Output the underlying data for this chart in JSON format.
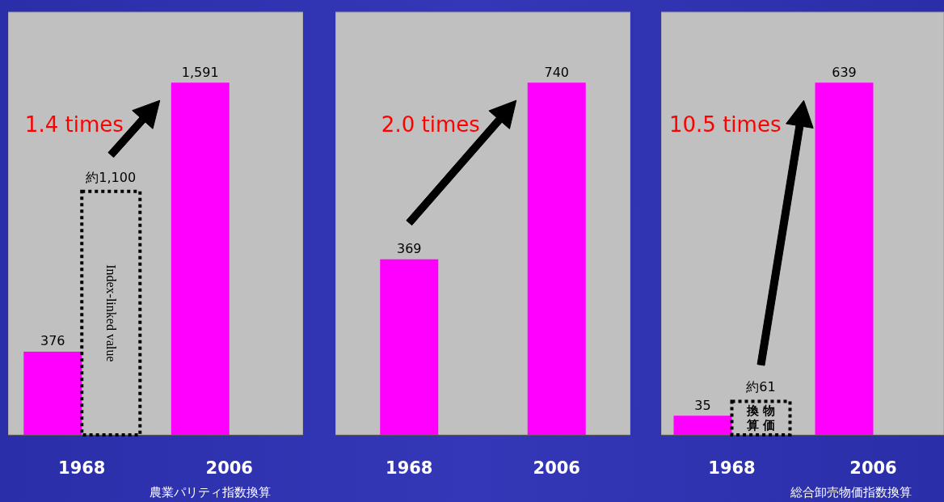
{
  "chart_data": [
    {
      "type": "bar",
      "categories": [
        "1968",
        "2006"
      ],
      "series": [
        {
          "color": "#ff00ff",
          "values": [
            376,
            1591
          ],
          "value_labels": [
            "376",
            "1,591"
          ]
        },
        {
          "name": "Index-linked value",
          "color": "#000000",
          "line_style": "dotted",
          "values": [
            1100,
            null
          ],
          "value_labels": [
            "約1,100",
            null
          ]
        }
      ],
      "annotations": [
        "1.4 times",
        "農業パリティ指数換算"
      ]
    },
    {
      "type": "bar",
      "categories": [
        "1968",
        "2006"
      ],
      "series": [
        {
          "color": "#ff00ff",
          "values": [
            369,
            740
          ],
          "value_labels": [
            "369",
            "740"
          ]
        }
      ],
      "annotations": [
        "2.0 times"
      ]
    },
    {
      "type": "bar",
      "categories": [
        "1968",
        "2006"
      ],
      "series": [
        {
          "color": "#ff00ff",
          "values": [
            35,
            639
          ],
          "value_labels": [
            "35",
            "639"
          ]
        },
        {
          "name": "物価換算",
          "color": "#000000",
          "line_style": "dotted",
          "values": [
            61,
            null
          ],
          "value_labels": [
            "約61",
            null
          ]
        }
      ],
      "annotations": [
        "10.5 times",
        "総合卸売物価指数換算"
      ]
    }
  ]
}
